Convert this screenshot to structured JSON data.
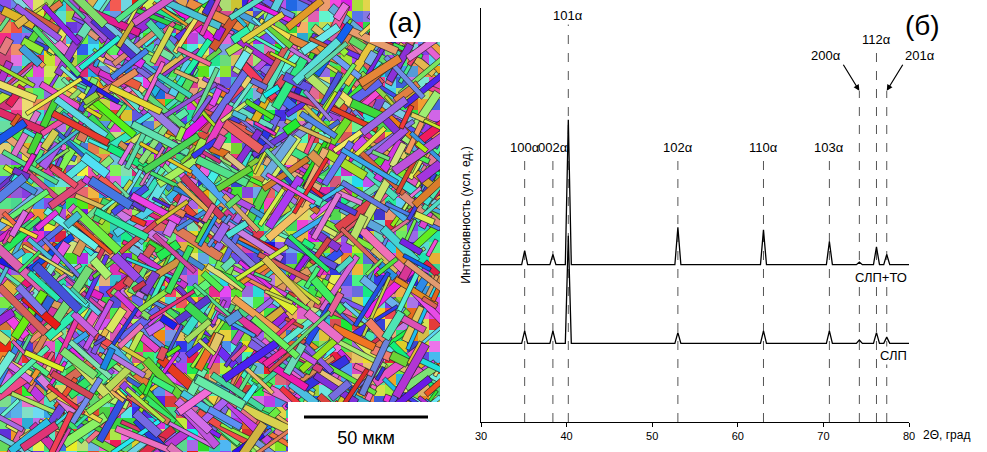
{
  "image_panel": {
    "label": "(а)",
    "scale_bar": "50 мкм"
  },
  "chart_data": {
    "type": "line",
    "panel_label": "(б)",
    "x_label": "2Θ, град",
    "y_label": "Интенсивность (усл. ед.)",
    "x": [
      30,
      34.75,
      35.1,
      35.45,
      38.05,
      38.4,
      38.75,
      39.85,
      40.2,
      40.55,
      52.65,
      53.0,
      53.35,
      62.65,
      63.0,
      63.35,
      70.35,
      70.7,
      71.05,
      73.85,
      74.2,
      74.55,
      75.85,
      76.2,
      76.55,
      77.05,
      77.4,
      77.75,
      80
    ],
    "series": [
      {
        "name": "СЛП+ТО",
        "color": "#000000",
        "values": [
          38,
          38,
          41.4,
          38,
          38,
          40.5,
          38,
          38,
          73,
          38,
          38,
          47,
          38,
          38,
          46.4,
          38,
          38,
          43.6,
          38,
          38,
          38.6,
          38,
          38,
          42.3,
          38,
          38,
          40.5,
          38,
          38
        ]
      },
      {
        "name": "СЛП",
        "color": "#000000",
        "values": [
          19,
          19,
          22,
          19,
          19,
          22,
          19,
          19,
          45,
          19,
          19,
          21.6,
          19,
          19,
          22,
          19,
          19,
          22,
          19,
          19,
          19.8,
          19,
          19,
          21.6,
          19,
          19,
          20.5,
          19,
          19
        ]
      }
    ],
    "annotations": [
      {
        "text": "100α",
        "x": 35.1
      },
      {
        "text": "002α",
        "x": 38.4
      },
      {
        "text": "101α",
        "x": 40.2
      },
      {
        "text": "102α",
        "x": 53.0
      },
      {
        "text": "110α",
        "x": 63.0
      },
      {
        "text": "103α",
        "x": 70.7
      },
      {
        "text": "200α",
        "x": 74.2
      },
      {
        "text": "112α",
        "x": 76.2
      },
      {
        "text": "201α",
        "x": 77.4
      }
    ],
    "xlim": [
      30,
      80
    ],
    "xticks": [
      30,
      40,
      50,
      60,
      70,
      80
    ],
    "ylim": [
      0,
      100
    ],
    "yticks": [],
    "tick_labels": "x",
    "grid": false
  }
}
